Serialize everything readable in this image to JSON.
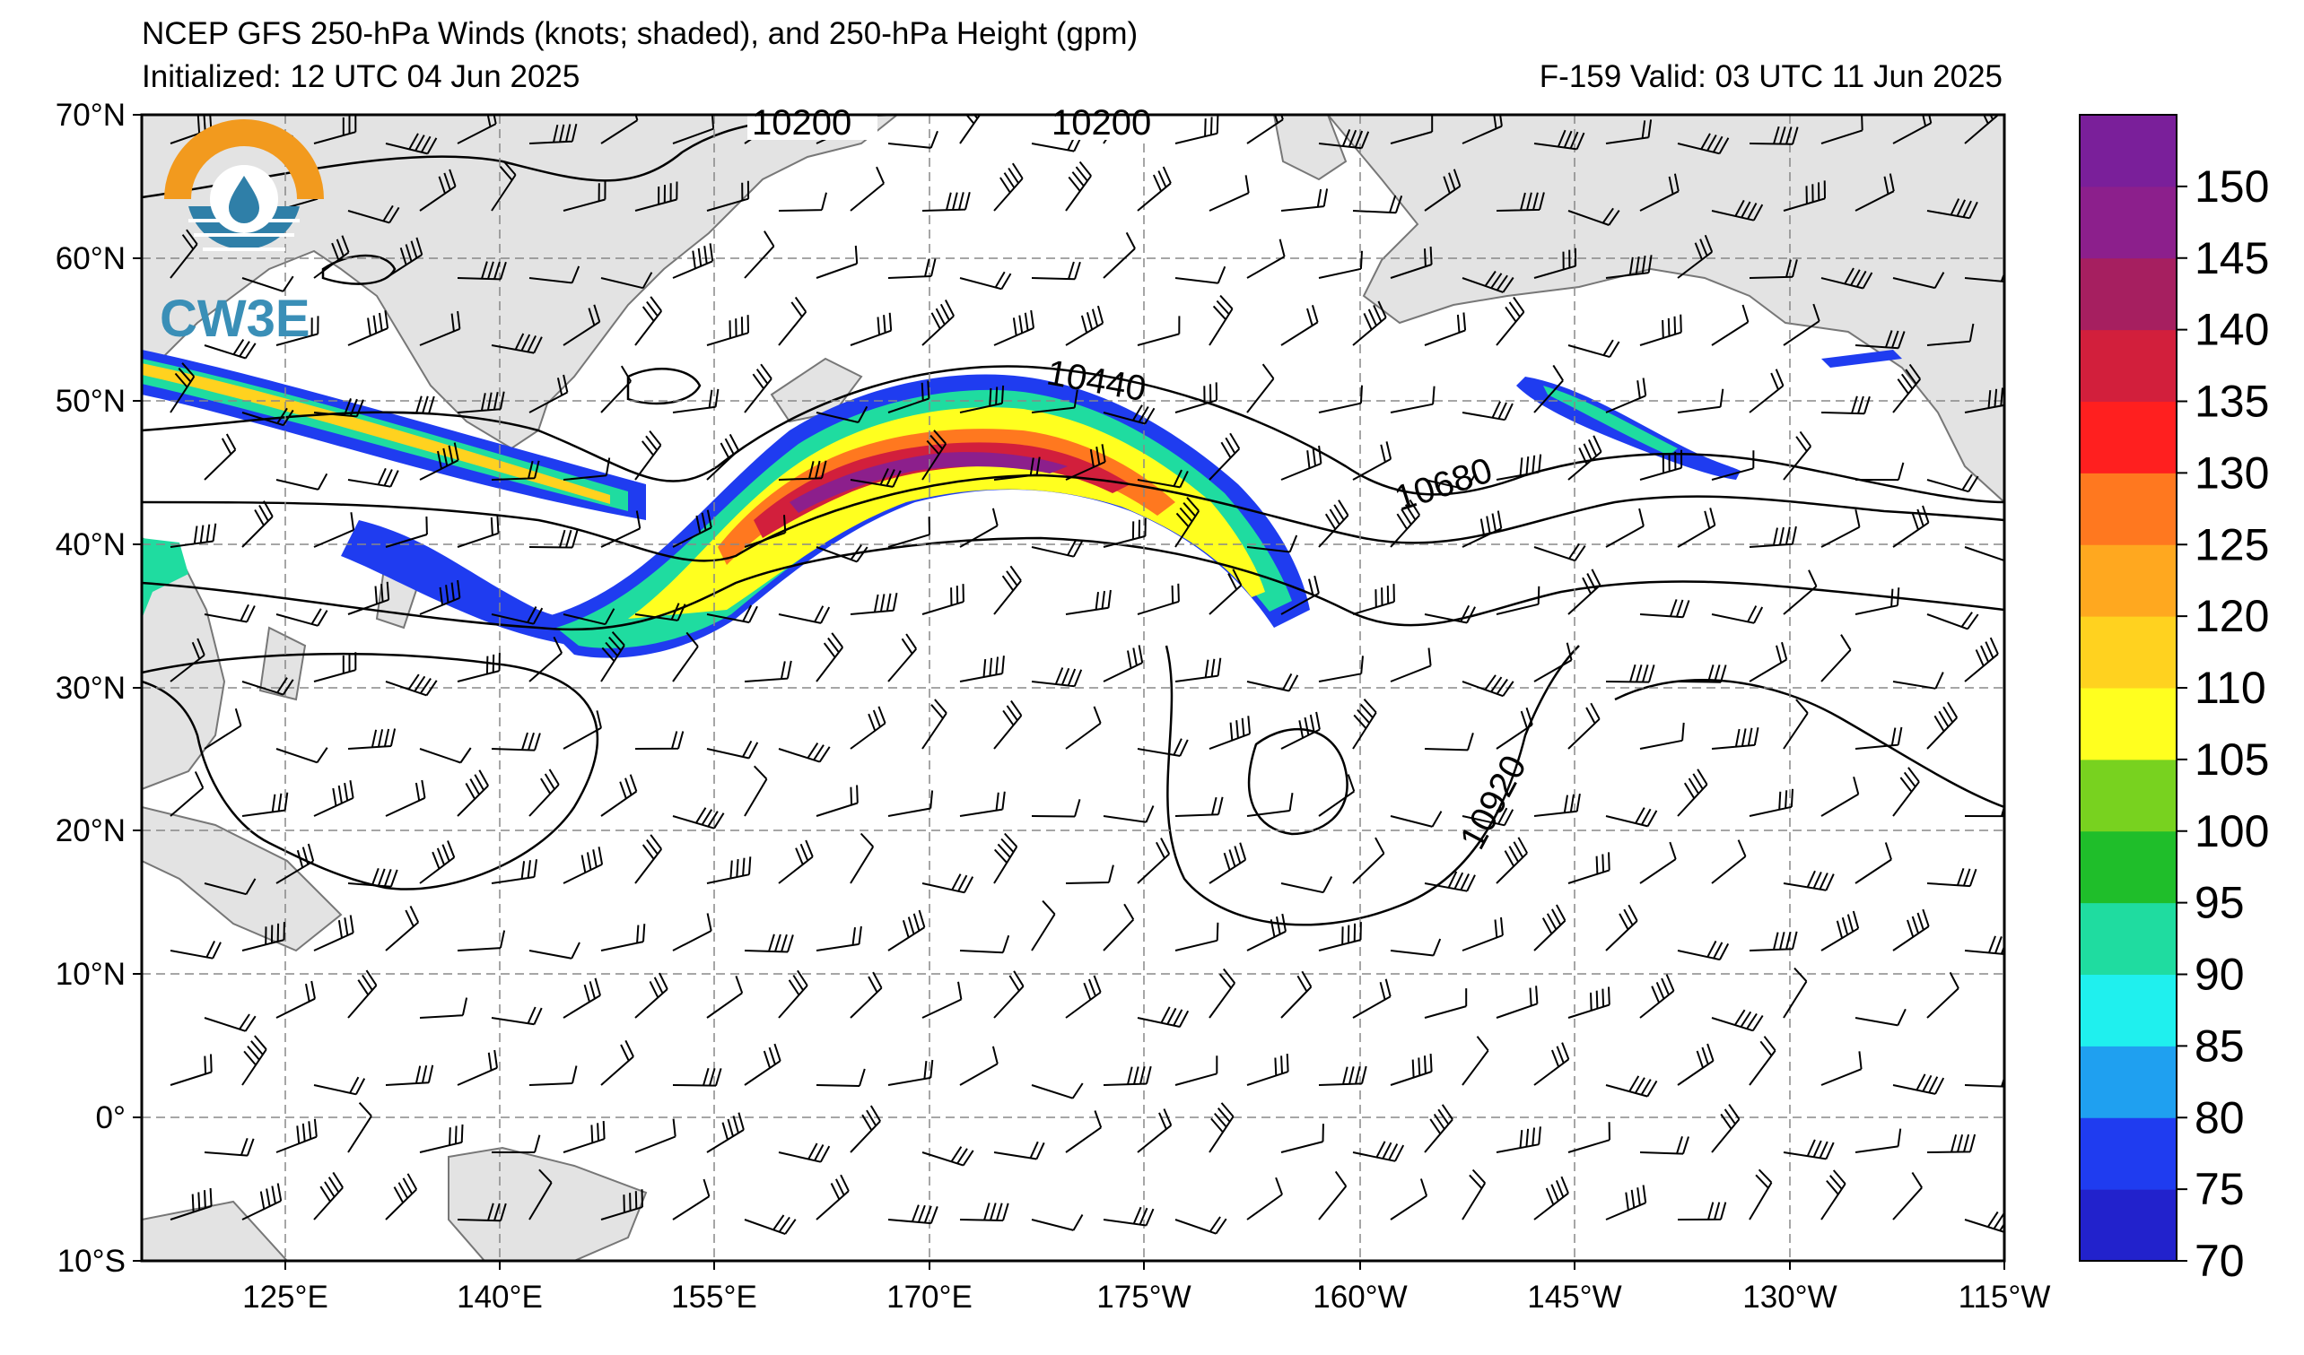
{
  "header": {
    "title": "NCEP GFS 250-hPa Winds (knots; shaded), and 250-hPa Height (gpm)",
    "initialized": "Initialized: 12 UTC 04 Jun 2025",
    "valid": "F-159  Valid: 03 UTC 11 Jun 2025"
  },
  "logo": {
    "text": "CW3E"
  },
  "map": {
    "lat_labels": [
      "70°N",
      "60°N",
      "50°N",
      "40°N",
      "30°N",
      "20°N",
      "10°N",
      "0°",
      "10°S"
    ],
    "lon_labels": [
      "125°E",
      "140°E",
      "155°E",
      "170°E",
      "175°W",
      "160°W",
      "145°W",
      "130°W",
      "115°W"
    ],
    "contour_labels": [
      "10200",
      "10200",
      "10440",
      "10680",
      "10920"
    ]
  },
  "colorbar": {
    "labels": [
      "70",
      "75",
      "80",
      "85",
      "90",
      "95",
      "100",
      "105",
      "110",
      "120",
      "125",
      "130",
      "135",
      "140",
      "145",
      "150"
    ],
    "colors": [
      "#2222cc",
      "#1f3cf0",
      "#1fa0f0",
      "#1ff0ee",
      "#1fdca0",
      "#1fbe2a",
      "#78d21f",
      "#ffff1f",
      "#ffd21f",
      "#ffa81f",
      "#ff781f",
      "#ff1f1f",
      "#d21f3c",
      "#a61f60",
      "#8c1f8c",
      "#7a1f9a"
    ],
    "units_note": "knots"
  }
}
